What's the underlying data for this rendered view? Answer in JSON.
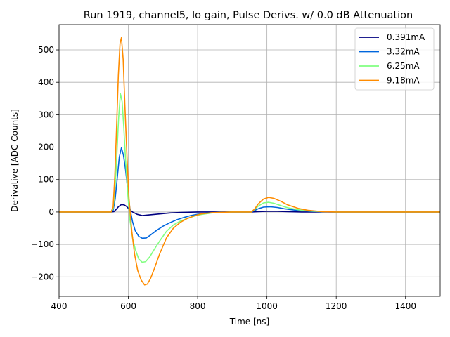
{
  "chart_data": {
    "type": "line",
    "title": "Run 1919, channel5, lo gain, Pulse Derivs. w/ 0.0 dB Attenuation",
    "xlabel": "Time [ns]",
    "ylabel": "Derivative [ADC Counts]",
    "xlim": [
      400,
      1500
    ],
    "ylim": [
      -260,
      578
    ],
    "xticks": [
      400,
      600,
      800,
      1000,
      1200,
      1400
    ],
    "yticks": [
      -200,
      -100,
      0,
      100,
      200,
      300,
      400,
      500
    ],
    "xtick_labels": [
      "400",
      "600",
      "800",
      "1000",
      "1200",
      "1400"
    ],
    "ytick_labels": [
      "−200",
      "−100",
      "0",
      "100",
      "200",
      "300",
      "400",
      "500"
    ],
    "grid": true,
    "legend_position": "top-right",
    "series": [
      {
        "name": "0.391mA",
        "color": "#000080",
        "x": [
          400,
          550,
          558,
          565,
          572,
          580,
          588,
          595,
          603,
          612,
          625,
          640,
          660,
          690,
          720,
          760,
          800,
          850,
          900,
          955,
          975,
          1000,
          1030,
          1060,
          1100,
          1200,
          1500
        ],
        "y": [
          0,
          0,
          1,
          8,
          17,
          23,
          22,
          17,
          8,
          0,
          -7,
          -11,
          -9,
          -6,
          -3,
          -1,
          0,
          0,
          0,
          0,
          1,
          2,
          2,
          1,
          0,
          0,
          0
        ]
      },
      {
        "name": "3.32mA",
        "color": "#0066dd",
        "x": [
          400,
          550,
          556,
          562,
          568,
          574,
          580,
          586,
          592,
          598,
          604,
          612,
          620,
          630,
          640,
          652,
          665,
          680,
          700,
          720,
          740,
          760,
          780,
          800,
          830,
          860,
          900,
          955,
          965,
          975,
          990,
          1010,
          1030,
          1050,
          1080,
          1110,
          1150,
          1200,
          1500
        ],
        "y": [
          0,
          0,
          5,
          40,
          105,
          170,
          198,
          175,
          130,
          70,
          15,
          -30,
          -58,
          -75,
          -81,
          -80,
          -70,
          -58,
          -44,
          -33,
          -24,
          -17,
          -11,
          -7,
          -3,
          -1,
          0,
          0,
          5,
          10,
          15,
          16,
          14,
          10,
          6,
          3,
          1,
          0,
          0
        ]
      },
      {
        "name": "6.25mA",
        "color": "#80ff80",
        "x": [
          400,
          550,
          556,
          562,
          567,
          572,
          577,
          582,
          587,
          592,
          598,
          604,
          612,
          620,
          630,
          640,
          650,
          662,
          675,
          690,
          710,
          730,
          750,
          770,
          790,
          810,
          840,
          870,
          900,
          955,
          965,
          975,
          990,
          1005,
          1020,
          1040,
          1060,
          1090,
          1120,
          1160,
          1200,
          1500
        ],
        "y": [
          0,
          0,
          10,
          80,
          180,
          290,
          365,
          340,
          260,
          160,
          60,
          -20,
          -80,
          -115,
          -145,
          -155,
          -153,
          -138,
          -115,
          -90,
          -60,
          -40,
          -28,
          -20,
          -13,
          -8,
          -3,
          -1,
          0,
          0,
          8,
          18,
          28,
          30,
          27,
          20,
          13,
          7,
          3,
          1,
          0,
          0
        ]
      },
      {
        "name": "9.18mA",
        "color": "#ff8c00",
        "x": [
          400,
          550,
          556,
          561,
          566,
          571,
          576,
          580,
          585,
          590,
          596,
          602,
          610,
          618,
          627,
          637,
          647,
          655,
          664,
          675,
          690,
          710,
          730,
          750,
          770,
          790,
          810,
          840,
          870,
          900,
          955,
          965,
          975,
          990,
          1005,
          1020,
          1040,
          1060,
          1090,
          1120,
          1160,
          1200,
          1500
        ],
        "y": [
          0,
          0,
          15,
          110,
          260,
          420,
          520,
          538,
          470,
          330,
          170,
          40,
          -60,
          -130,
          -180,
          -210,
          -225,
          -222,
          -205,
          -175,
          -130,
          -80,
          -50,
          -32,
          -20,
          -12,
          -6,
          -2,
          -1,
          0,
          0,
          10,
          25,
          40,
          45,
          42,
          33,
          22,
          11,
          5,
          1,
          0,
          0
        ]
      }
    ]
  }
}
